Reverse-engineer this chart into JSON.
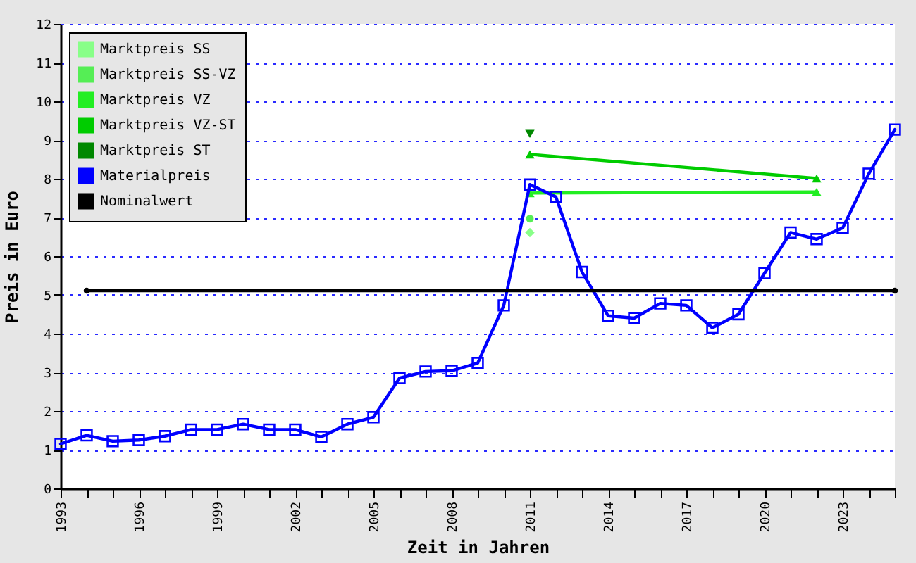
{
  "chart_data": {
    "type": "line",
    "xlabel": "Zeit in Jahren",
    "ylabel": "Preis in Euro",
    "xlim": [
      1993,
      2025
    ],
    "ylim": [
      0,
      12
    ],
    "xticks": [
      1993,
      {
        "value": 1994,
        "label": null
      },
      {
        "value": 1995,
        "label": null
      },
      1996,
      {
        "value": 1997,
        "label": null
      },
      {
        "value": 1998,
        "label": null
      },
      1999,
      {
        "value": 2000,
        "label": null
      },
      {
        "value": 2001,
        "label": null
      },
      2002,
      {
        "value": 2003,
        "label": null
      },
      {
        "value": 2004,
        "label": null
      },
      2005,
      {
        "value": 2006,
        "label": null
      },
      {
        "value": 2007,
        "label": null
      },
      2008,
      {
        "value": 2009,
        "label": null
      },
      {
        "value": 2010,
        "label": null
      },
      2011,
      {
        "value": 2012,
        "label": null
      },
      {
        "value": 2013,
        "label": null
      },
      2014,
      {
        "value": 2015,
        "label": null
      },
      {
        "value": 2016,
        "label": null
      },
      2017,
      {
        "value": 2018,
        "label": null
      },
      {
        "value": 2019,
        "label": null
      },
      2020,
      {
        "value": 2021,
        "label": null
      },
      {
        "value": 2022,
        "label": null
      },
      2023,
      {
        "value": 2024,
        "label": null
      },
      {
        "value": 2025,
        "label": null
      }
    ],
    "yticks": [
      0,
      1,
      2,
      3,
      4,
      5,
      6,
      7,
      8,
      9,
      10,
      11,
      12
    ],
    "grid": "y",
    "legend": "top left",
    "line_style": "solid",
    "series": [
      {
        "name": "Marktpreis SS",
        "color": "#88ff88",
        "marker": "diamond",
        "x": [
          2011
        ],
        "values": [
          6.61
        ]
      },
      {
        "name": "Marktpreis SS-VZ",
        "color": "#55ee55",
        "marker": "circle",
        "x": [
          2011
        ],
        "values": [
          6.97
        ]
      },
      {
        "name": "Marktpreis VZ",
        "color": "#22ee22",
        "marker": "triangle",
        "x": [
          2011,
          2022
        ],
        "values": [
          7.63,
          7.66
        ]
      },
      {
        "name": "Marktpreis VZ-ST",
        "color": "#00cc00",
        "marker": "triangle",
        "x": [
          2011,
          2022
        ],
        "values": [
          8.63,
          8.01
        ]
      },
      {
        "name": "Marktpreis ST",
        "color": "#008800",
        "marker": "triangle-down",
        "x": [
          2011
        ],
        "values": [
          9.16
        ]
      },
      {
        "name": "Materialpreis",
        "color": "#0000ff",
        "marker": "square",
        "x": [
          1993,
          1994,
          1995,
          1996,
          1997,
          1998,
          1999,
          2000,
          2001,
          2002,
          2003,
          2004,
          2005,
          2006,
          2007,
          2008,
          2009,
          2010,
          2011,
          2012,
          2013,
          2014,
          2015,
          2016,
          2017,
          2018,
          2019,
          2020,
          2021,
          2022,
          2023,
          2024,
          2025
        ],
        "values": [
          1.15,
          1.37,
          1.22,
          1.25,
          1.35,
          1.52,
          1.52,
          1.66,
          1.52,
          1.52,
          1.33,
          1.66,
          1.84,
          2.85,
          3.02,
          3.04,
          3.24,
          4.73,
          7.85,
          7.53,
          5.59,
          4.46,
          4.4,
          4.78,
          4.73,
          4.15,
          4.5,
          5.56,
          6.61,
          6.44,
          6.73,
          8.13,
          9.27
        ]
      },
      {
        "name": "Nominalwert",
        "color": "#000000",
        "marker": "circle",
        "x": [
          1994,
          2025
        ],
        "values": [
          5.11,
          5.11
        ]
      }
    ]
  }
}
